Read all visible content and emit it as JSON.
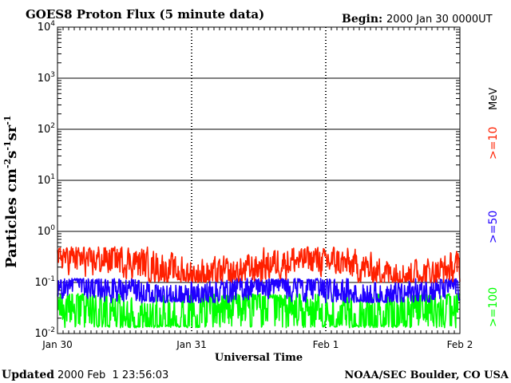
{
  "header": {
    "title": "GOES8 Proton Flux (5 minute data)",
    "begin_label": "Begin:",
    "begin_value": "2000 Jan 30 0000UT"
  },
  "footer": {
    "updated_label": "Updated",
    "updated_value": "2000 Feb  1 23:56:03",
    "credit": "NOAA/SEC Boulder, CO USA"
  },
  "colors": {
    "s10": "#ff2000",
    "s50": "#2000ff",
    "s100": "#00ff00"
  },
  "chart_data": {
    "type": "line",
    "title": "GOES8 Proton Flux (5 minute data)",
    "xlabel": "Universal Time",
    "ylabel_parts": [
      "Particles cm",
      "-2",
      "s",
      "-1",
      "sr",
      "-1"
    ],
    "y_scale": "log",
    "ylim": [
      0.01,
      10000
    ],
    "y_ticks": [
      {
        "base": "10",
        "exp": "4",
        "value": 10000
      },
      {
        "base": "10",
        "exp": "3",
        "value": 1000
      },
      {
        "base": "10",
        "exp": "2",
        "value": 100
      },
      {
        "base": "10",
        "exp": "1",
        "value": 10
      },
      {
        "base": "10",
        "exp": "0",
        "value": 1
      },
      {
        "base": "10",
        "exp": "-1",
        "value": 0.1
      },
      {
        "base": "10",
        "exp": "-2",
        "value": 0.01
      }
    ],
    "x_range_days": [
      0,
      3
    ],
    "x_ticks": [
      {
        "label": "Jan 30",
        "day": 0
      },
      {
        "label": "Jan 31",
        "day": 1
      },
      {
        "label": "Feb 1",
        "day": 2
      },
      {
        "label": "Feb 2",
        "day": 3
      }
    ],
    "grid": true,
    "legend_placement": "right, vertical",
    "energy_unit": "MeV",
    "series": [
      {
        "name": ">=10",
        "color_key": "s10",
        "typical": 0.2,
        "low": 0.1,
        "high": 0.5
      },
      {
        "name": ">=50",
        "color_key": "s50",
        "typical": 0.07,
        "low": 0.04,
        "high": 0.12
      },
      {
        "name": ">=100",
        "color_key": "s100",
        "typical": 0.025,
        "low": 0.013,
        "high": 0.06
      }
    ]
  }
}
